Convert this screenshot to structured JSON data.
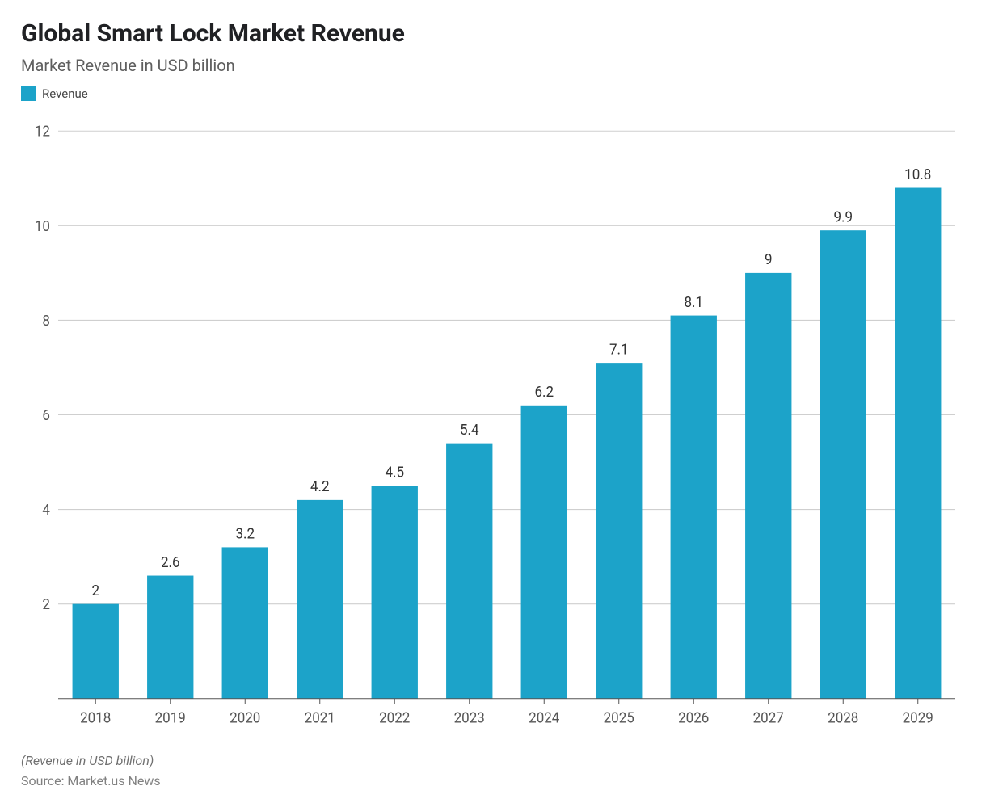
{
  "header": {
    "title": "Global Smart Lock Market Revenue",
    "subtitle": "Market Revenue in USD billion"
  },
  "legend": {
    "series_label": "Revenue",
    "swatch_color": "#1ca3c9"
  },
  "chart": {
    "type": "bar",
    "categories": [
      "2018",
      "2019",
      "2020",
      "2021",
      "2022",
      "2023",
      "2024",
      "2025",
      "2026",
      "2027",
      "2028",
      "2029"
    ],
    "values": [
      2,
      2.6,
      3.2,
      4.2,
      4.5,
      5.4,
      6.2,
      7.1,
      8.1,
      9,
      9.9,
      10.8
    ],
    "value_labels": [
      "2",
      "2.6",
      "3.2",
      "4.2",
      "4.5",
      "5.4",
      "6.2",
      "7.1",
      "8.1",
      "9",
      "9.9",
      "10.8"
    ],
    "bar_color": "#1ca3c9",
    "ylim": [
      0,
      12
    ],
    "ytick_step": 2,
    "ytick_labels": [
      "2",
      "4",
      "6",
      "8",
      "10",
      "12"
    ],
    "grid_color": "#cfcfcf",
    "axis_line_color": "#555555",
    "background_color": "#ffffff",
    "bar_width_ratio": 0.62,
    "tick_fontsize": 17,
    "value_label_fontsize": 17
  },
  "footer": {
    "note": "(Revenue in USD billion)",
    "source": "Source: Market.us News"
  }
}
